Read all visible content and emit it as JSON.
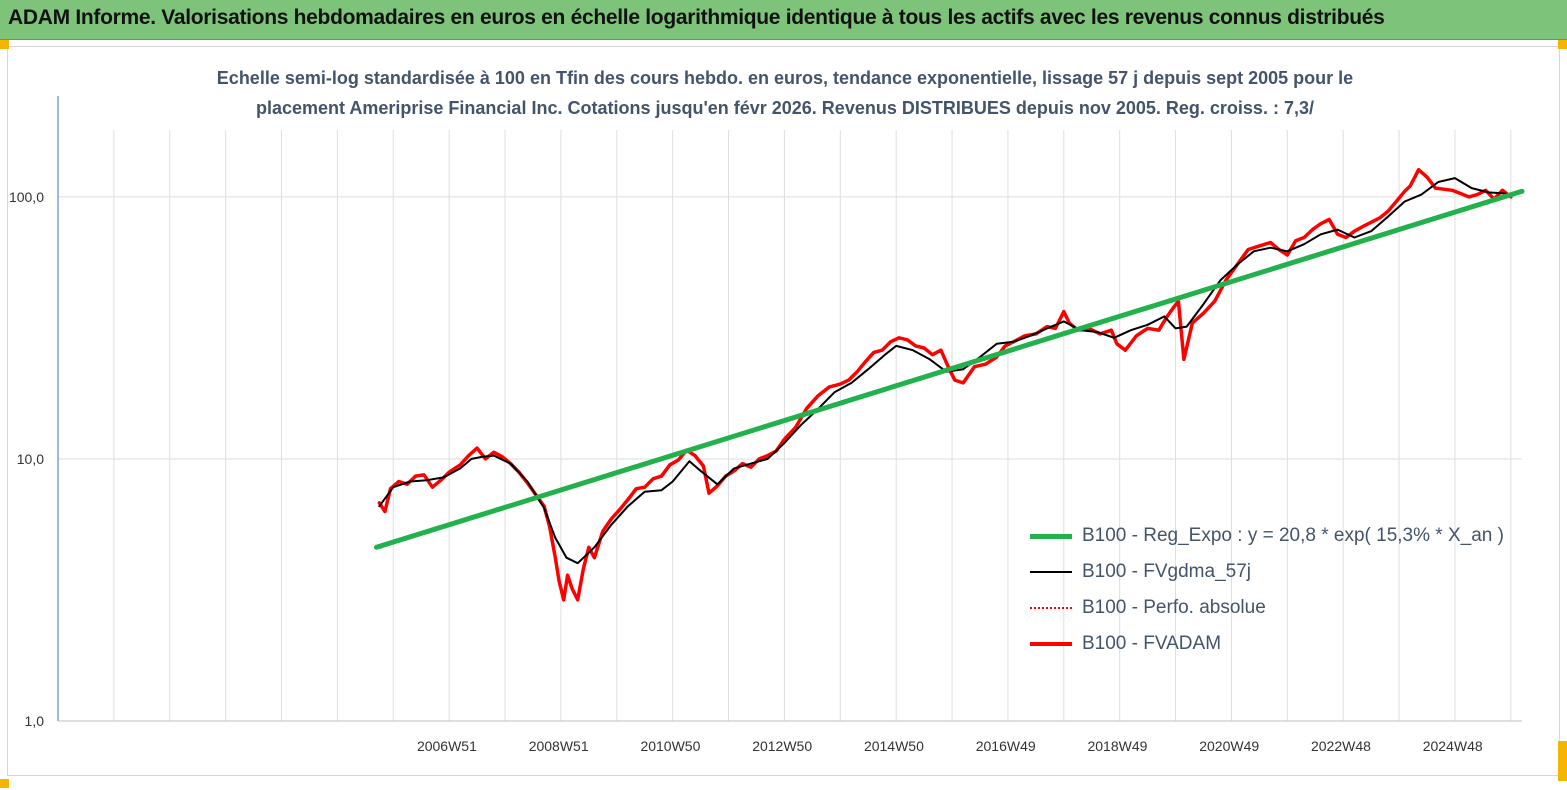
{
  "banner": {
    "title": "ADAM Informe. Valorisations hebdomadaires en euros en échelle logarithmique identique à tous les actifs avec les revenus connus distribués"
  },
  "colors": {
    "banner_bg": "#7dc47a",
    "regression": "#22b14c",
    "gdma": "#000000",
    "perfo": "#ff0000",
    "fvadam": "#ff0000",
    "corner": "#f5b400"
  },
  "chart_data": {
    "type": "line",
    "title_line1": "Echelle semi-log standardisée à 100 en Tfin des cours hebdo. en euros, tendance exponentielle, lissage 57 j depuis sept 2005  pour le",
    "title_line2": "placement Ameriprise Financial Inc. Cotations jusqu'en févr 2026. Revenus DISTRIBUES depuis nov 2005. Reg. croiss. : 7,3/",
    "y_scale": "log",
    "ylim": [
      1,
      180
    ],
    "y_ticks": [
      {
        "value": 1,
        "label": "1,0"
      },
      {
        "value": 10,
        "label": "10,0"
      },
      {
        "value": 100,
        "label": "100,0"
      }
    ],
    "x_range": [
      2000.0,
      2026.2
    ],
    "x_ticks": [
      {
        "value": 2006.96,
        "label": "2006W51"
      },
      {
        "value": 2008.96,
        "label": "2008W51"
      },
      {
        "value": 2010.96,
        "label": "2010W50"
      },
      {
        "value": 2012.96,
        "label": "2012W50"
      },
      {
        "value": 2014.96,
        "label": "2014W50"
      },
      {
        "value": 2016.96,
        "label": "2016W49"
      },
      {
        "value": 2018.96,
        "label": "2018W49"
      },
      {
        "value": 2020.96,
        "label": "2020W49"
      },
      {
        "value": 2022.96,
        "label": "2022W48"
      },
      {
        "value": 2024.96,
        "label": "2024W48"
      }
    ],
    "grid_years": [
      2000,
      2001,
      2002,
      2003,
      2004,
      2005,
      2006,
      2007,
      2008,
      2009,
      2010,
      2011,
      2012,
      2013,
      2014,
      2015,
      2016,
      2017,
      2018,
      2019,
      2020,
      2021,
      2022,
      2023,
      2024,
      2025,
      2026
    ],
    "legend_position": "bottom-right",
    "series": [
      {
        "name": "B100 - Reg_Expo : y = 20,8 * exp( 15,3% *  X_an )",
        "style": "regression",
        "x": [
          2005.7,
          2026.2
        ],
        "y": [
          4.6,
          105
        ]
      },
      {
        "name": "B100 - FVgdma_57j",
        "style": "gdma",
        "x": [
          2005.75,
          2006.0,
          2006.3,
          2006.6,
          2006.9,
          2007.2,
          2007.4,
          2007.6,
          2007.8,
          2008.1,
          2008.4,
          2008.7,
          2008.9,
          2009.1,
          2009.3,
          2009.6,
          2009.9,
          2010.2,
          2010.5,
          2010.8,
          2011.0,
          2011.3,
          2011.5,
          2011.8,
          2012.1,
          2012.4,
          2012.7,
          2013.0,
          2013.3,
          2013.6,
          2013.9,
          2014.2,
          2014.5,
          2014.8,
          2015.0,
          2015.3,
          2015.6,
          2015.9,
          2016.2,
          2016.5,
          2016.8,
          2017.1,
          2017.4,
          2017.7,
          2018.0,
          2018.3,
          2018.6,
          2018.9,
          2019.2,
          2019.5,
          2019.8,
          2020.0,
          2020.2,
          2020.5,
          2020.8,
          2021.1,
          2021.4,
          2021.7,
          2022.0,
          2022.3,
          2022.6,
          2022.9,
          2023.2,
          2023.5,
          2023.8,
          2024.1,
          2024.4,
          2024.7,
          2025.0,
          2025.3,
          2025.6,
          2025.9,
          2026.0
        ],
        "y": [
          6.6,
          7.8,
          8.2,
          8.3,
          8.5,
          9.2,
          10.0,
          10.2,
          10.3,
          9.6,
          8.2,
          6.5,
          5.0,
          4.2,
          4.0,
          4.6,
          5.6,
          6.6,
          7.5,
          7.6,
          8.2,
          9.8,
          9.0,
          8.0,
          9.2,
          9.6,
          10.0,
          11.5,
          13.5,
          15.5,
          18.0,
          19.5,
          22.0,
          25.0,
          27.0,
          26.0,
          24.0,
          21.5,
          22.0,
          24.5,
          27.5,
          28.0,
          29.5,
          31.5,
          33.5,
          31.0,
          30.5,
          29.0,
          31.0,
          32.5,
          35.0,
          31.5,
          32.0,
          39.0,
          48.0,
          55.0,
          62.0,
          64.0,
          62.0,
          66.0,
          72.0,
          75.0,
          70.0,
          74.0,
          84.0,
          96.0,
          102.0,
          114.0,
          118.0,
          108.0,
          104.0,
          103.0,
          101.0
        ]
      },
      {
        "name": "B100 - Perfo. absolue",
        "style": "perfo",
        "x": [],
        "y": []
      },
      {
        "name": "B100 - FVADAM",
        "style": "fvadam",
        "x": [
          2005.75,
          2005.85,
          2005.95,
          2006.1,
          2006.25,
          2006.4,
          2006.55,
          2006.7,
          2006.85,
          2007.0,
          2007.2,
          2007.35,
          2007.5,
          2007.65,
          2007.8,
          2007.95,
          2008.1,
          2008.25,
          2008.4,
          2008.55,
          2008.7,
          2008.8,
          2008.9,
          2008.97,
          2009.05,
          2009.12,
          2009.2,
          2009.3,
          2009.4,
          2009.5,
          2009.6,
          2009.75,
          2009.9,
          2010.05,
          2010.2,
          2010.35,
          2010.5,
          2010.65,
          2010.8,
          2010.95,
          2011.1,
          2011.25,
          2011.4,
          2011.55,
          2011.65,
          2011.8,
          2011.95,
          2012.1,
          2012.25,
          2012.4,
          2012.55,
          2012.7,
          2012.85,
          2013.0,
          2013.2,
          2013.4,
          2013.6,
          2013.8,
          2014.0,
          2014.15,
          2014.3,
          2014.45,
          2014.6,
          2014.75,
          2014.9,
          2015.05,
          2015.2,
          2015.35,
          2015.5,
          2015.65,
          2015.8,
          2015.95,
          2016.05,
          2016.2,
          2016.4,
          2016.6,
          2016.8,
          2016.95,
          2017.1,
          2017.3,
          2017.5,
          2017.7,
          2017.85,
          2018.0,
          2018.1,
          2018.25,
          2018.45,
          2018.65,
          2018.85,
          2018.95,
          2019.1,
          2019.3,
          2019.5,
          2019.7,
          2019.85,
          2019.95,
          2020.05,
          2020.15,
          2020.3,
          2020.5,
          2020.7,
          2020.9,
          2021.1,
          2021.3,
          2021.5,
          2021.7,
          2021.85,
          2022.0,
          2022.15,
          2022.3,
          2022.45,
          2022.6,
          2022.75,
          2022.9,
          2023.05,
          2023.2,
          2023.35,
          2023.5,
          2023.65,
          2023.8,
          2023.95,
          2024.1,
          2024.2,
          2024.35,
          2024.5,
          2024.65,
          2024.8,
          2024.95,
          2025.1,
          2025.25,
          2025.4,
          2025.55,
          2025.7,
          2025.85,
          2026.0
        ],
        "y": [
          6.8,
          6.3,
          7.7,
          8.2,
          8.0,
          8.6,
          8.7,
          7.8,
          8.3,
          8.9,
          9.5,
          10.3,
          11.0,
          10.0,
          10.6,
          10.2,
          9.6,
          8.9,
          8.1,
          7.3,
          6.6,
          5.5,
          4.2,
          3.4,
          2.9,
          3.6,
          3.2,
          2.9,
          3.8,
          4.6,
          4.2,
          5.3,
          5.9,
          6.4,
          7.0,
          7.7,
          7.8,
          8.4,
          8.6,
          9.5,
          9.9,
          10.8,
          10.3,
          9.4,
          7.4,
          7.9,
          8.6,
          9.0,
          9.6,
          9.3,
          10.0,
          10.3,
          10.7,
          11.9,
          13.2,
          15.6,
          17.4,
          18.8,
          19.3,
          20.0,
          21.5,
          23.5,
          25.5,
          26.0,
          28.0,
          29.0,
          28.5,
          27.0,
          26.5,
          25.0,
          26.0,
          22.0,
          20.0,
          19.5,
          22.5,
          23.0,
          24.5,
          27.0,
          28.0,
          29.5,
          30.0,
          32.0,
          31.5,
          36.5,
          33.0,
          31.0,
          31.5,
          30.0,
          31.0,
          27.5,
          26.0,
          29.5,
          31.5,
          31.0,
          35.0,
          37.5,
          40.0,
          24.0,
          33.0,
          36.0,
          40.0,
          48.0,
          55.0,
          63.0,
          65.0,
          67.0,
          63.0,
          60.0,
          68.0,
          70.0,
          75.0,
          79.0,
          82.0,
          72.0,
          70.0,
          74.0,
          77.0,
          80.0,
          83.0,
          88.0,
          96.0,
          105.0,
          110.0,
          127.0,
          119.0,
          108.0,
          107.0,
          106.0,
          103.0,
          100.0,
          102.0,
          106.0,
          98.0,
          106.0,
          100.0
        ]
      }
    ]
  }
}
